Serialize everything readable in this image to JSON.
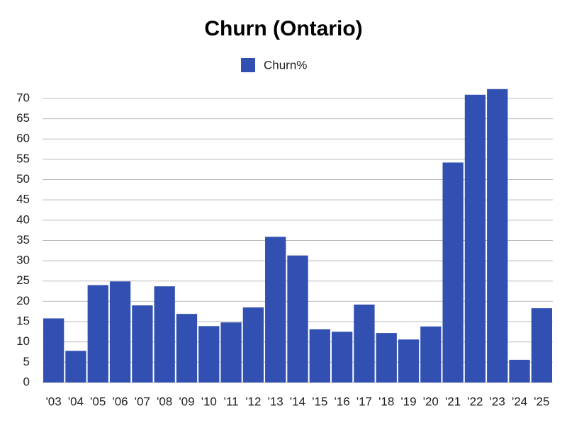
{
  "chart_data": {
    "type": "bar",
    "title": "Churn (Ontario)",
    "categories": [
      "'03",
      "'04",
      "'05",
      "'06",
      "'07",
      "'08",
      "'09",
      "'10",
      "'11",
      "'12",
      "'13",
      "'14",
      "'15",
      "'16",
      "'17",
      "'18",
      "'19",
      "'20",
      "'21",
      "'22",
      "'23",
      "'24",
      "'25"
    ],
    "series": [
      {
        "name": "Churn%",
        "color": "#3150b1",
        "values": [
          15.8,
          7.8,
          24.0,
          24.9,
          19.0,
          23.7,
          16.9,
          13.9,
          14.8,
          18.5,
          35.9,
          31.3,
          13.1,
          12.5,
          19.2,
          12.2,
          10.6,
          13.8,
          54.2,
          70.9,
          72.3,
          5.6,
          18.3
        ]
      }
    ],
    "ylim": [
      0,
      72.5
    ],
    "yticks": [
      0,
      5,
      10,
      15,
      20,
      25,
      30,
      35,
      40,
      45,
      50,
      55,
      60,
      65,
      70
    ],
    "grid": true,
    "legend": "top"
  }
}
